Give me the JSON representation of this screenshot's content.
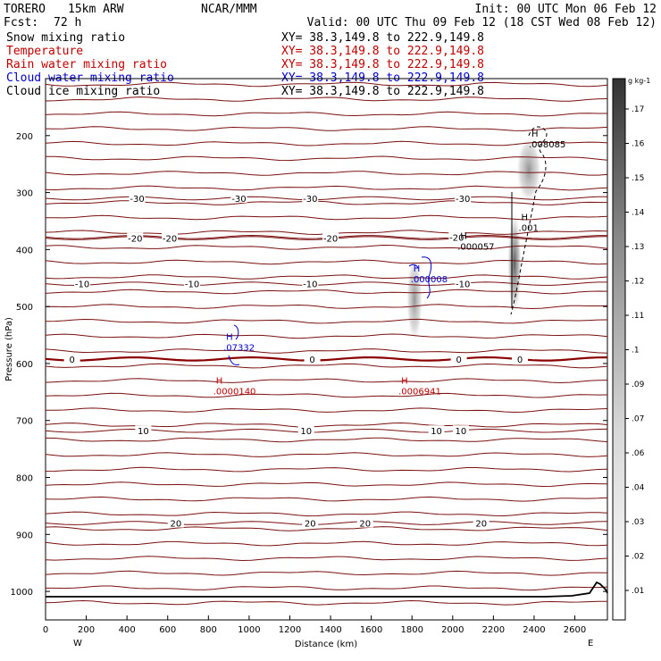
{
  "header": {
    "model": "TORERO",
    "resolution": "15km ARW",
    "org": "NCAR/MMM",
    "init": "Init: 00 UTC Mon 06 Feb 12",
    "fcst_label": "Fcst:",
    "fcst_value": "72 h",
    "valid": "Valid: 00 UTC Thu 09 Feb 12 (18 CST Wed 08 Feb 12)"
  },
  "fields": [
    {
      "label": "Snow mixing ratio",
      "xy": "XY= 38.3,149.8 to 222.9,149.8",
      "color": "#000000"
    },
    {
      "label": "Temperature",
      "xy": "XY= 38.3,149.8 to 222.9,149.8",
      "color": "#c00000"
    },
    {
      "label": "Rain water mixing ratio",
      "xy": "XY= 38.3,149.8 to 222.9,149.8",
      "color": "#c00000"
    },
    {
      "label": "Cloud water mixing ratio",
      "xy": "XY= 38.3,149.8 to 222.9,149.8",
      "color": "#0000cc"
    },
    {
      "label": "Cloud ice mixing ratio",
      "xy": "XY= 38.3,149.8 to 222.9,149.8",
      "color": "#000000"
    }
  ],
  "chart_data": {
    "type": "cross-section",
    "xlabel": "Distance (km)",
    "ylabel": "Pressure (hPa)",
    "xlim": [
      0,
      2760
    ],
    "ylim": [
      1050,
      100
    ],
    "x_ticks": [
      0,
      200,
      400,
      600,
      800,
      1000,
      1200,
      1400,
      1600,
      1800,
      2000,
      2200,
      2400,
      2600
    ],
    "y_ticks": [
      200,
      300,
      400,
      500,
      600,
      700,
      800,
      900,
      1000
    ],
    "left_end_label": "W",
    "right_end_label": "E",
    "colorbar": {
      "unit": "g kg-1",
      "ticks": [
        ".01",
        ".02",
        ".03",
        ".04",
        ".06",
        ".07",
        ".09",
        ".1",
        ".11",
        ".12",
        ".13",
        ".14",
        ".15",
        ".16",
        ".17"
      ]
    },
    "temperature_contours": [
      {
        "value": -30,
        "label": "-30",
        "p": 310,
        "label_x": [
          450,
          950,
          1300,
          2050
        ]
      },
      {
        "value": -20,
        "label": "-20",
        "p": 380,
        "label_x": [
          440,
          610,
          1400
        ]
      },
      {
        "value": -20,
        "label": "-20",
        "p": 378,
        "label_x": [
          2020
        ]
      },
      {
        "value": -10,
        "label": "-10",
        "p": 460,
        "label_x": [
          180,
          720,
          1300,
          2050
        ]
      },
      {
        "value": 0,
        "label": "0",
        "p": 592,
        "label_x": [
          130,
          1310,
          2030,
          2330
        ]
      },
      {
        "value": 10,
        "label": "10",
        "p": 718,
        "label_x": [
          480,
          1280,
          1920,
          2040
        ]
      },
      {
        "value": 20,
        "label": "20",
        "p": 880,
        "label_x": [
          640,
          1300,
          1570,
          2140
        ]
      }
    ],
    "markers": [
      {
        "field": "Snow mixing ratio",
        "label": "H",
        "value": ".008085",
        "x": 2400,
        "p": 208
      },
      {
        "field": "Snow mixing ratio",
        "label": "H",
        "value": ".000057",
        "x": 2050,
        "p": 388
      },
      {
        "field": "Cloud ice mixing ratio",
        "label": "H",
        "value": ".001",
        "x": 2350,
        "p": 355
      },
      {
        "field": "Cloud water mixing ratio",
        "label": "H",
        "value": ".07332",
        "x": 900,
        "p": 565
      },
      {
        "field": "Cloud water mixing ratio",
        "label": "H",
        "value": ".000008",
        "x": 1820,
        "p": 445
      },
      {
        "field": "Rain water mixing ratio",
        "label": "H",
        "value": ".0000140",
        "x": 850,
        "p": 642
      },
      {
        "field": "Rain water mixing ratio",
        "label": "H",
        "value": ".0006941",
        "x": 1760,
        "p": 642
      }
    ]
  }
}
